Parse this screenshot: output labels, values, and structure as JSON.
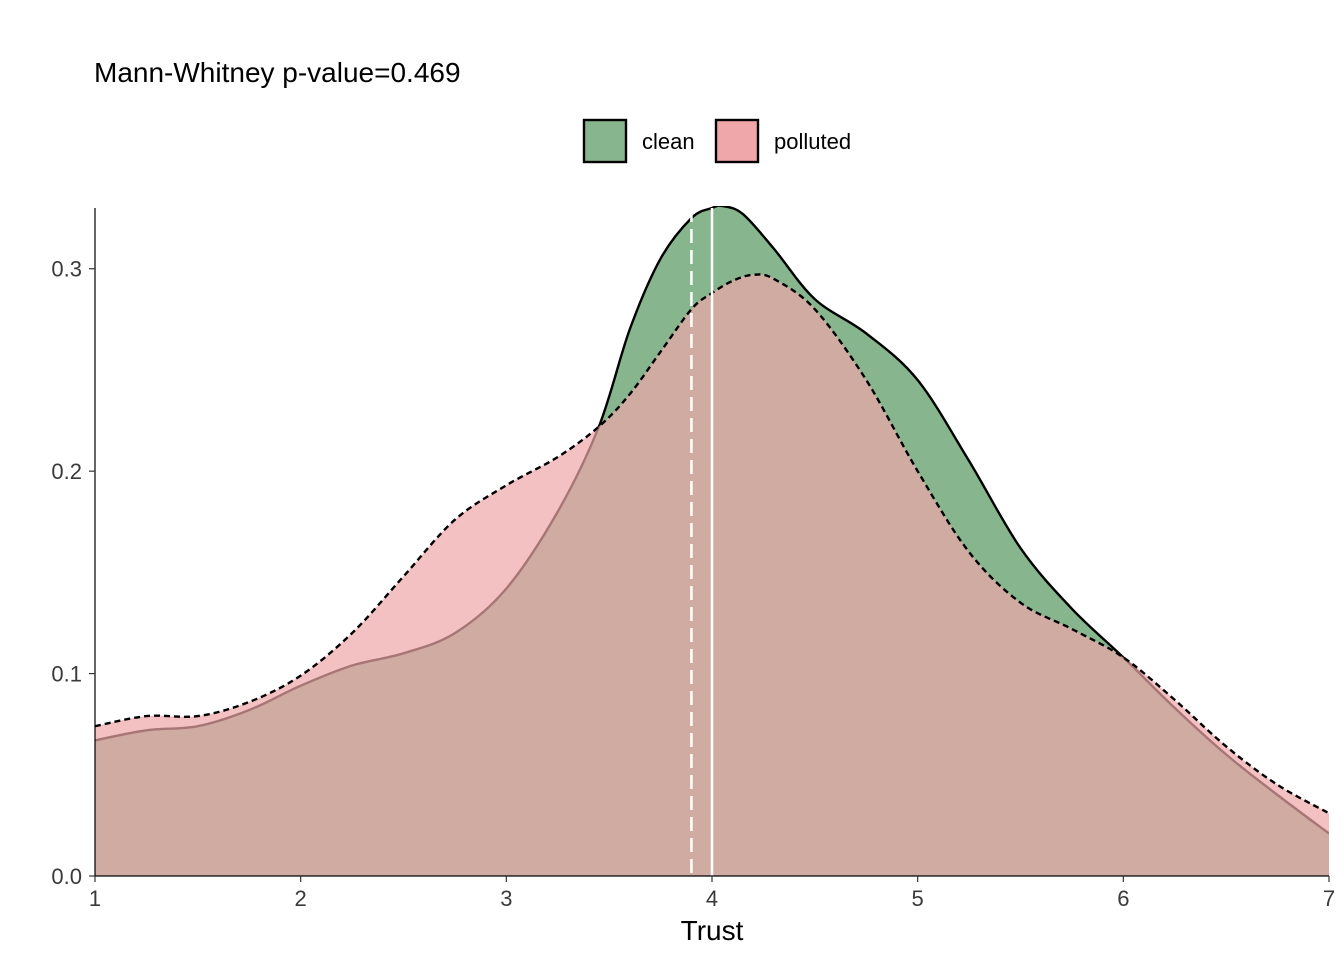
{
  "chart_data": {
    "type": "area",
    "title": "Mann-Whitney p-value=0.469",
    "xlabel": "Trust",
    "ylabel": "",
    "xlim": [
      1,
      7
    ],
    "ylim": [
      0,
      0.33
    ],
    "xticks": [
      1,
      2,
      3,
      4,
      5,
      6,
      7
    ],
    "yticks": [
      0.0,
      0.1,
      0.2,
      0.3
    ],
    "ytick_labels": [
      "0.0",
      "0.1",
      "0.2",
      "0.3"
    ],
    "legend_position": "top",
    "grid": false,
    "series": [
      {
        "name": "clean",
        "fill": "#87b68e",
        "line_style": "solid",
        "median": 4.0,
        "x": [
          1.0,
          1.25,
          1.5,
          1.75,
          2.0,
          2.25,
          2.5,
          2.75,
          3.0,
          3.25,
          3.45,
          3.6,
          3.75,
          3.9,
          4.0,
          4.05,
          4.15,
          4.3,
          4.5,
          4.75,
          5.0,
          5.25,
          5.5,
          5.75,
          6.0,
          6.25,
          6.5,
          6.75,
          7.0
        ],
        "y": [
          0.067,
          0.072,
          0.074,
          0.082,
          0.094,
          0.104,
          0.11,
          0.12,
          0.142,
          0.18,
          0.222,
          0.27,
          0.305,
          0.325,
          0.33,
          0.331,
          0.327,
          0.31,
          0.285,
          0.268,
          0.245,
          0.205,
          0.162,
          0.132,
          0.108,
          0.083,
          0.06,
          0.04,
          0.021
        ]
      },
      {
        "name": "polluted",
        "fill": "#f0a7aa",
        "line_style": "dashed",
        "median": 3.9,
        "x": [
          1.0,
          1.25,
          1.5,
          1.75,
          2.0,
          2.25,
          2.5,
          2.75,
          3.0,
          3.25,
          3.45,
          3.6,
          3.75,
          3.9,
          4.0,
          4.1,
          4.2,
          4.3,
          4.5,
          4.75,
          5.0,
          5.25,
          5.5,
          5.75,
          6.0,
          6.25,
          6.5,
          6.75,
          7.0
        ],
        "y": [
          0.074,
          0.079,
          0.079,
          0.086,
          0.099,
          0.12,
          0.148,
          0.176,
          0.193,
          0.207,
          0.222,
          0.238,
          0.259,
          0.28,
          0.288,
          0.294,
          0.297,
          0.295,
          0.28,
          0.245,
          0.2,
          0.16,
          0.135,
          0.122,
          0.108,
          0.087,
          0.064,
          0.045,
          0.031
        ]
      }
    ]
  }
}
